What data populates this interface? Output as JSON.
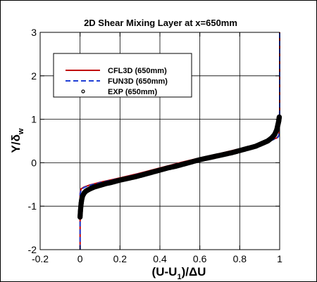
{
  "chart_data": {
    "type": "line",
    "title": "2D Shear Mixing Layer at x=650mm",
    "xlabel_main": "(U-U",
    "xlabel_sub": "1",
    "xlabel_tail": ")/ΔU",
    "ylabel_main": "Y/δ",
    "ylabel_sub": "w",
    "xlim": [
      -0.2,
      1.0
    ],
    "ylim": [
      -2,
      3
    ],
    "xticks": [
      "-0.2",
      "0",
      "0.2",
      "0.4",
      "0.6",
      "0.8",
      "1"
    ],
    "xtick_values": [
      -0.2,
      0,
      0.2,
      0.4,
      0.6,
      0.8,
      1.0
    ],
    "yticks": [
      "-2",
      "-1",
      "0",
      "1",
      "2",
      "3"
    ],
    "ytick_values": [
      -2,
      -1,
      0,
      1,
      2,
      3
    ],
    "grid": true,
    "legend_position": "top-left",
    "series": [
      {
        "name": "CFL3D (650mm)",
        "style": "solid",
        "color": "#c00000",
        "x": [
          0.0,
          0.0,
          0.0,
          0.005,
          0.02,
          0.05,
          0.1,
          0.2,
          0.3,
          0.4,
          0.5,
          0.6,
          0.7,
          0.8,
          0.88,
          0.93,
          0.96,
          0.985,
          0.995,
          0.998,
          1.0,
          1.0
        ],
        "y": [
          -2.0,
          -1.0,
          -0.7,
          -0.6,
          -0.56,
          -0.51,
          -0.45,
          -0.35,
          -0.24,
          -0.12,
          0.0,
          0.11,
          0.21,
          0.32,
          0.41,
          0.48,
          0.53,
          0.57,
          0.62,
          0.7,
          1.2,
          3.0
        ]
      },
      {
        "name": "FUN3D (650mm)",
        "style": "dashed",
        "color": "#1f3fd6",
        "x": [
          0.0,
          0.0,
          0.0,
          0.005,
          0.02,
          0.05,
          0.1,
          0.2,
          0.3,
          0.4,
          0.5,
          0.6,
          0.7,
          0.8,
          0.88,
          0.93,
          0.96,
          0.985,
          0.995,
          0.998,
          1.0,
          1.0
        ],
        "y": [
          -2.0,
          -1.0,
          -0.72,
          -0.62,
          -0.57,
          -0.52,
          -0.46,
          -0.36,
          -0.25,
          -0.13,
          -0.01,
          0.1,
          0.2,
          0.31,
          0.4,
          0.47,
          0.52,
          0.56,
          0.61,
          0.7,
          1.2,
          3.0
        ]
      },
      {
        "name": "EXP (650mm)",
        "style": "markers",
        "color": "#000000",
        "x": [
          0.0,
          0.002,
          0.005,
          0.008,
          0.012,
          0.02,
          0.03,
          0.05,
          0.07,
          0.1,
          0.13,
          0.16,
          0.2,
          0.24,
          0.28,
          0.32,
          0.36,
          0.4,
          0.44,
          0.48,
          0.52,
          0.56,
          0.6,
          0.64,
          0.68,
          0.72,
          0.76,
          0.8,
          0.84,
          0.88,
          0.91,
          0.94,
          0.96,
          0.975,
          0.985,
          0.99,
          0.995,
          0.998
        ],
        "y": [
          -1.25,
          -1.1,
          -0.95,
          -0.85,
          -0.77,
          -0.7,
          -0.65,
          -0.6,
          -0.56,
          -0.52,
          -0.48,
          -0.45,
          -0.4,
          -0.36,
          -0.32,
          -0.27,
          -0.22,
          -0.17,
          -0.12,
          -0.08,
          -0.03,
          0.02,
          0.07,
          0.11,
          0.15,
          0.19,
          0.23,
          0.28,
          0.33,
          0.38,
          0.44,
          0.5,
          0.57,
          0.65,
          0.75,
          0.85,
          0.95,
          1.05
        ]
      }
    ]
  }
}
